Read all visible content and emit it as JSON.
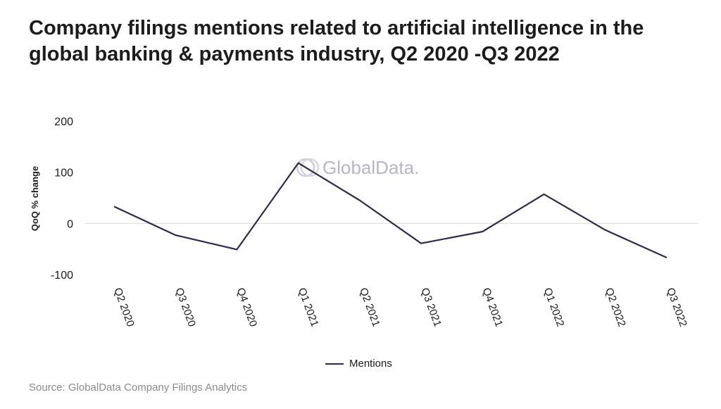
{
  "title": "Company filings mentions related to artificial intelligence in the global banking & payments industry, Q2 2020 -Q3 2022",
  "source": "Source: GlobalData Company Filings Analytics",
  "watermark": "GlobalData.",
  "colors": {
    "line": "#2d2a4a",
    "zero_line": "#d9d9d9",
    "watermark": "#b9b4c9"
  },
  "chart_data": {
    "type": "line",
    "title": "Company filings mentions related to artificial intelligence in the global banking & payments industry, Q2 2020 -Q3 2022",
    "xlabel": "",
    "ylabel": "QoQ % change",
    "categories": [
      "Q2 2020",
      "Q3 2020",
      "Q4 2020",
      "Q1 2021",
      "Q2 2021",
      "Q3 2021",
      "Q4 2021",
      "Q1 2022",
      "Q2 2022",
      "Q3 2022"
    ],
    "series": [
      {
        "name": "Mentions",
        "values": [
          33,
          -23,
          -51,
          118,
          45,
          -39,
          -16,
          57,
          -13,
          -67
        ]
      }
    ],
    "ylim": [
      -100,
      200
    ],
    "yticks": [
      "200",
      "100",
      "0",
      "-100"
    ],
    "legend_position": "bottom-center",
    "grid": false
  }
}
